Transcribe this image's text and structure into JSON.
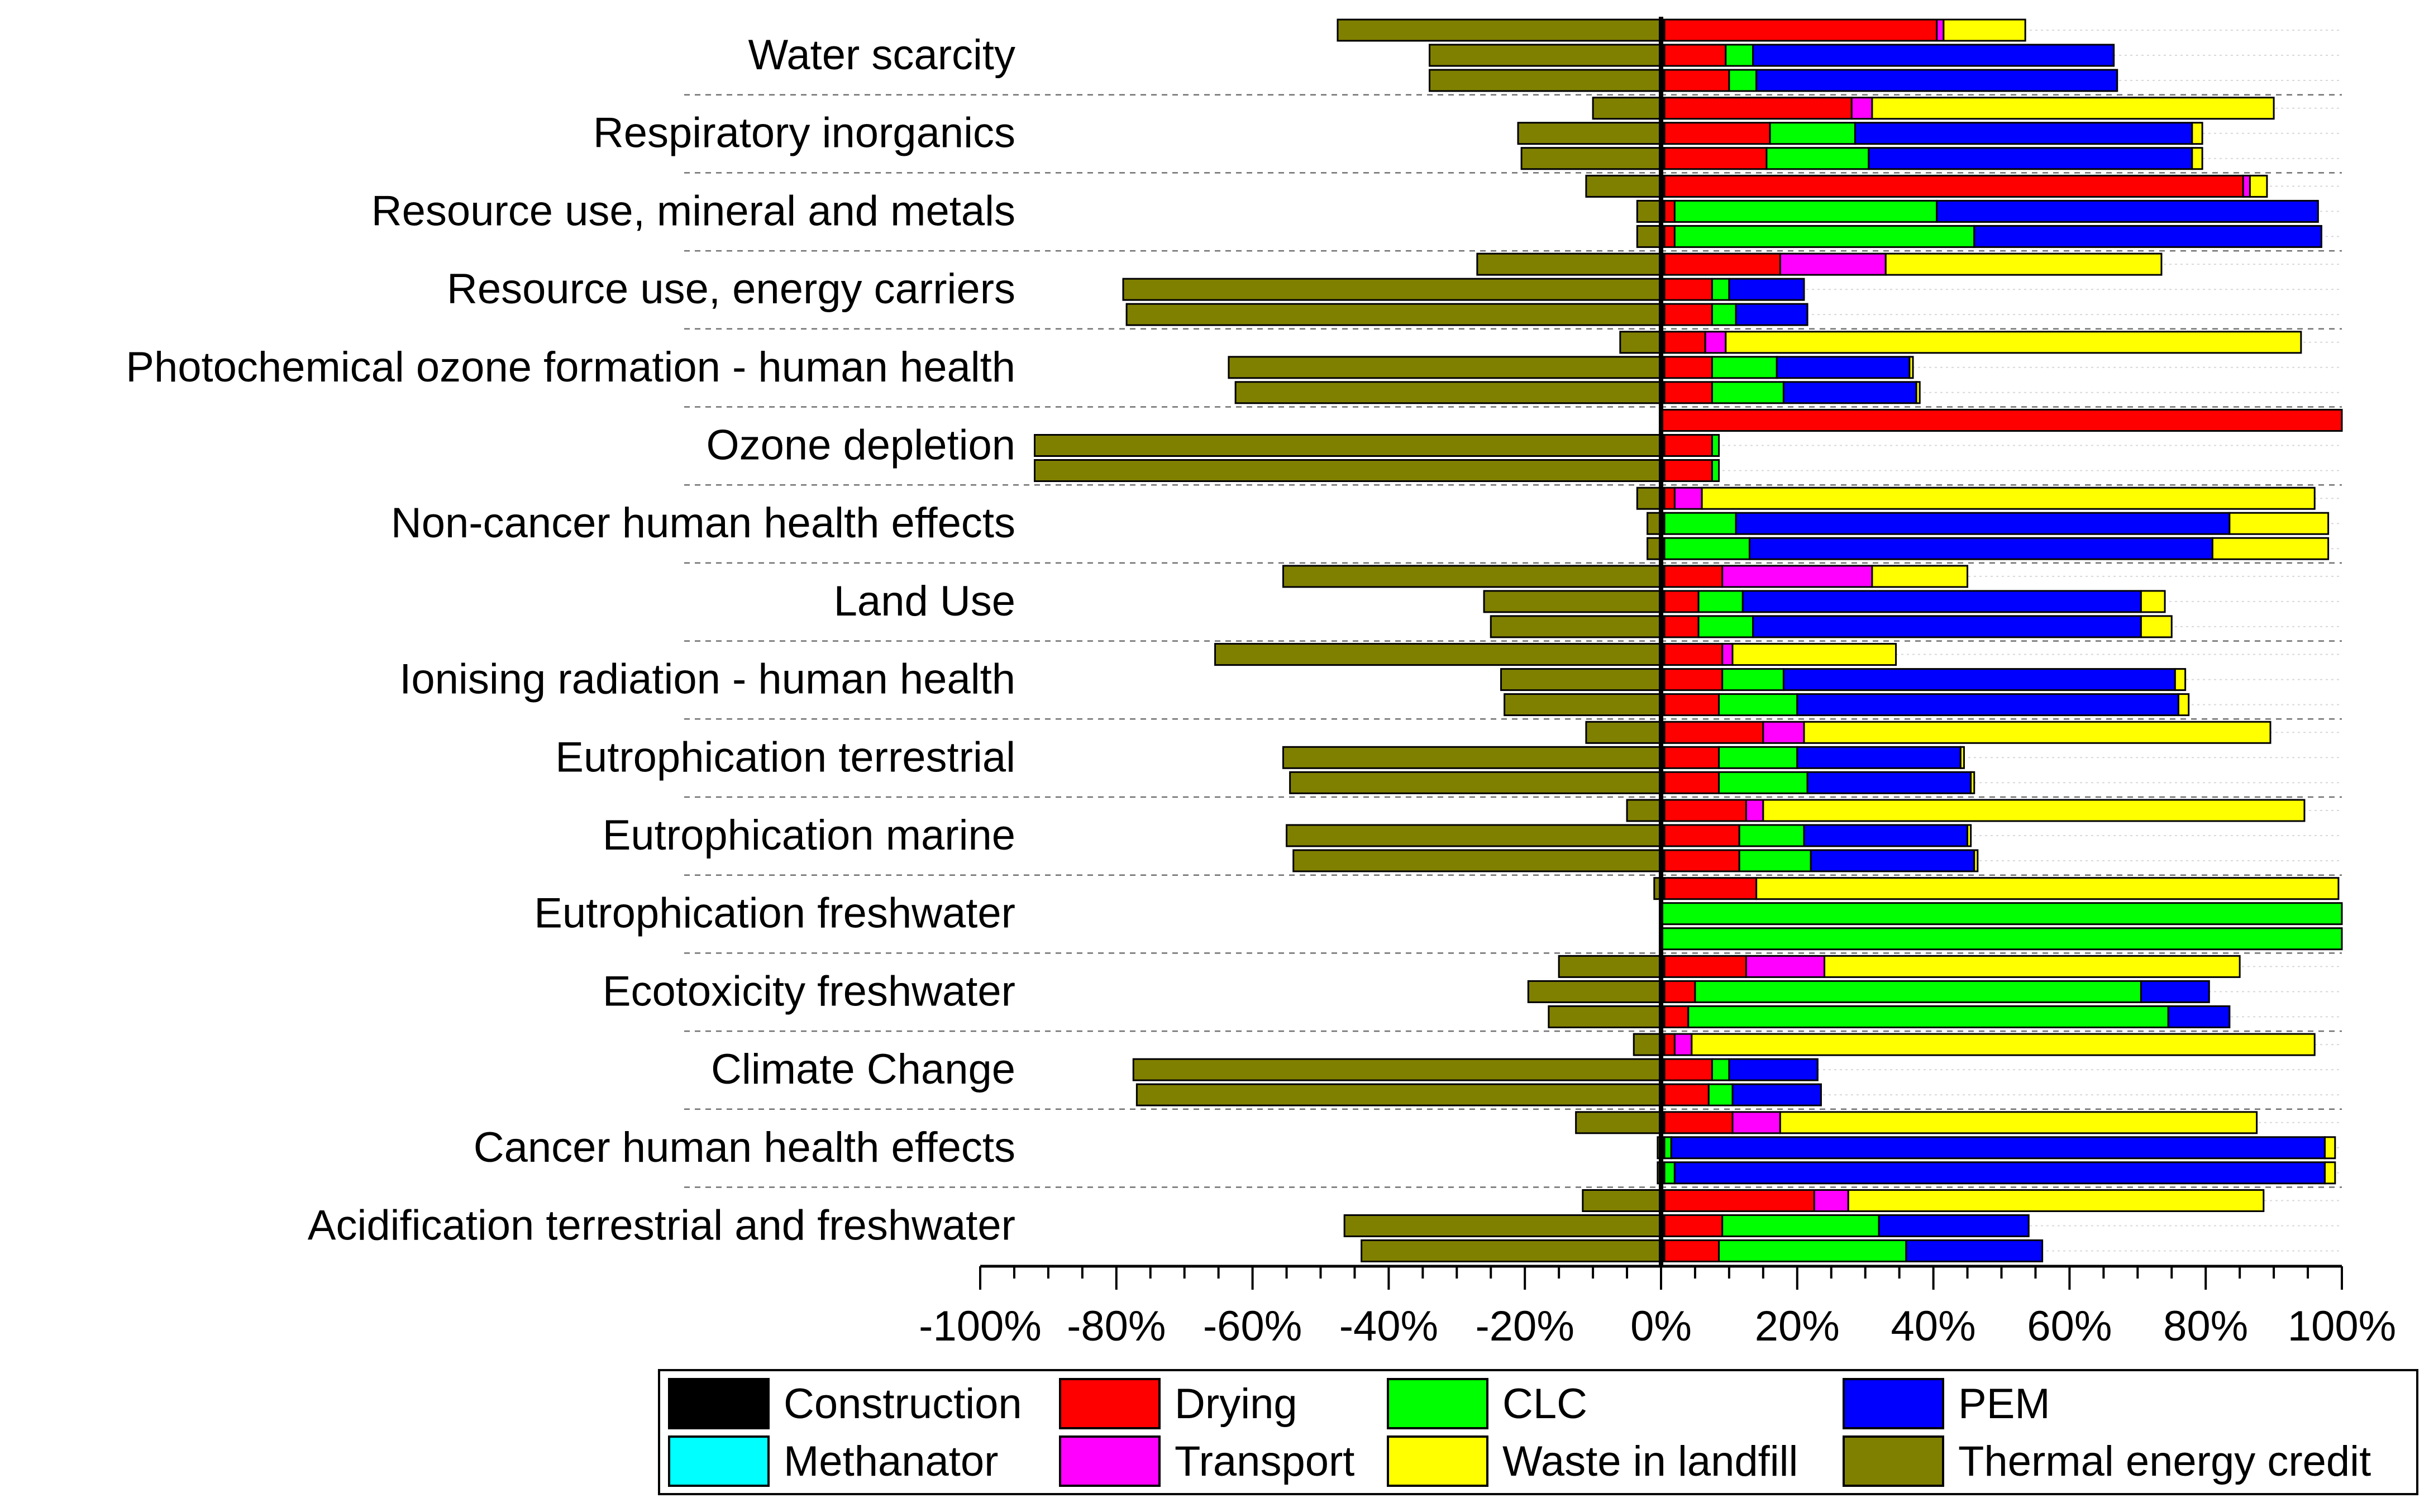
{
  "chart_data": {
    "type": "stacked-bar-horizontal",
    "title": "",
    "xlabel": "",
    "ylabel": "",
    "xlim": [
      -100,
      100
    ],
    "x_ticks": [
      "-100%",
      "-80%",
      "-60%",
      "-40%",
      "-20%",
      "0%",
      "20%",
      "40%",
      "60%",
      "80%",
      "100%"
    ],
    "value_unit": "%",
    "segment_order": [
      "Construction",
      "Drying",
      "Transport",
      "CLC",
      "PEM",
      "Methanator",
      "Waste in landfill"
    ],
    "legend": [
      {
        "name": "Construction",
        "color": "#000000"
      },
      {
        "name": "Drying",
        "color": "#ff0000"
      },
      {
        "name": "CLC",
        "color": "#00ff00"
      },
      {
        "name": "PEM",
        "color": "#0000ff"
      },
      {
        "name": "Methanator",
        "color": "#00ffff"
      },
      {
        "name": "Transport",
        "color": "#ff00ff"
      },
      {
        "name": "Waste in landfill",
        "color": "#ffff00"
      },
      {
        "name": "Thermal energy credit",
        "color": "#808000"
      }
    ],
    "categories": [
      {
        "label": "Water scarcity",
        "bars": [
          {
            "credit": -47.5,
            "segments": {
              "Construction": 0.5,
              "Drying": 40,
              "Transport": 1,
              "Waste in landfill": 12
            }
          },
          {
            "credit": -34,
            "segments": {
              "Construction": 0.5,
              "Drying": 9,
              "CLC": 4,
              "PEM": 53
            }
          },
          {
            "credit": -34,
            "segments": {
              "Construction": 0.5,
              "Drying": 9.5,
              "CLC": 4,
              "PEM": 53
            }
          }
        ]
      },
      {
        "label": "Respiratory inorganics",
        "bars": [
          {
            "credit": -10,
            "segments": {
              "Construction": 0.5,
              "Drying": 27.5,
              "Transport": 3,
              "Waste in landfill": 59
            }
          },
          {
            "credit": -21,
            "segments": {
              "Construction": 0.5,
              "Drying": 15.5,
              "CLC": 12.5,
              "PEM": 49.5,
              "Waste in landfill": 1.5
            }
          },
          {
            "credit": -20.5,
            "segments": {
              "Construction": 0.5,
              "Drying": 15,
              "CLC": 15,
              "PEM": 47.5,
              "Waste in landfill": 1.5
            }
          }
        ]
      },
      {
        "label": "Resource use, mineral and metals",
        "bars": [
          {
            "credit": -11,
            "segments": {
              "Construction": 0.5,
              "Drying": 85,
              "Transport": 1,
              "Waste in landfill": 2.5
            }
          },
          {
            "credit": -3.5,
            "segments": {
              "Construction": 0.5,
              "Drying": 1.5,
              "CLC": 38.5,
              "PEM": 56
            }
          },
          {
            "credit": -3.5,
            "segments": {
              "Construction": 0.5,
              "Drying": 1.5,
              "CLC": 44,
              "PEM": 51
            }
          }
        ]
      },
      {
        "label": "Resource use, energy carriers",
        "bars": [
          {
            "credit": -27,
            "segments": {
              "Construction": 0.5,
              "Drying": 17,
              "Transport": 15.5,
              "Waste in landfill": 40.5
            }
          },
          {
            "credit": -79,
            "segments": {
              "Construction": 0.5,
              "Drying": 7,
              "CLC": 2.5,
              "PEM": 11
            }
          },
          {
            "credit": -78.5,
            "segments": {
              "Construction": 0.5,
              "Drying": 7,
              "CLC": 3.5,
              "PEM": 10.5
            }
          }
        ]
      },
      {
        "label": "Photochemical ozone formation - human health",
        "bars": [
          {
            "credit": -6,
            "segments": {
              "Construction": 0.5,
              "Drying": 6,
              "Transport": 3,
              "Waste in landfill": 84.5
            }
          },
          {
            "credit": -63.5,
            "segments": {
              "Construction": 0.5,
              "Drying": 7,
              "CLC": 9.5,
              "PEM": 19.5,
              "Waste in landfill": 0.5
            }
          },
          {
            "credit": -62.5,
            "segments": {
              "Construction": 0.5,
              "Drying": 7,
              "CLC": 10.5,
              "PEM": 19.5,
              "Waste in landfill": 0.5
            }
          }
        ]
      },
      {
        "label": "Ozone depletion",
        "bars": [
          {
            "credit": 0,
            "segments": {
              "Drying": 100
            }
          },
          {
            "credit": -92,
            "segments": {
              "Construction": 0.5,
              "Drying": 7,
              "CLC": 1
            }
          },
          {
            "credit": -92,
            "segments": {
              "Construction": 0.5,
              "Drying": 7,
              "CLC": 1
            }
          }
        ]
      },
      {
        "label": "Non-cancer human health effects",
        "bars": [
          {
            "credit": -3.5,
            "segments": {
              "Construction": 0.5,
              "Drying": 1.5,
              "Transport": 4,
              "Waste in landfill": 90
            }
          },
          {
            "credit": -2,
            "segments": {
              "Construction": 0.5,
              "CLC": 10.5,
              "PEM": 72.5,
              "Waste in landfill": 14.5
            }
          },
          {
            "credit": -2,
            "segments": {
              "Construction": 0.5,
              "CLC": 12.5,
              "PEM": 68,
              "Waste in landfill": 17
            }
          }
        ]
      },
      {
        "label": "Land Use",
        "bars": [
          {
            "credit": -55.5,
            "segments": {
              "Construction": 0.5,
              "Drying": 8.5,
              "Transport": 22,
              "Waste in landfill": 14
            }
          },
          {
            "credit": -26,
            "segments": {
              "Construction": 0.5,
              "Drying": 5,
              "CLC": 6.5,
              "PEM": 58.5,
              "Waste in landfill": 3.5
            }
          },
          {
            "credit": -25,
            "segments": {
              "Construction": 0.5,
              "Drying": 5,
              "CLC": 8,
              "PEM": 57,
              "Waste in landfill": 4.5
            }
          }
        ]
      },
      {
        "label": "Ionising radiation - human health",
        "bars": [
          {
            "credit": -65.5,
            "segments": {
              "Construction": 0.5,
              "Drying": 8.5,
              "Transport": 1.5,
              "Waste in landfill": 24
            }
          },
          {
            "credit": -23.5,
            "segments": {
              "Construction": 0.5,
              "Drying": 8.5,
              "CLC": 9,
              "PEM": 57.5,
              "Waste in landfill": 1.5
            }
          },
          {
            "credit": -23,
            "segments": {
              "Construction": 0.5,
              "Drying": 8,
              "CLC": 11.5,
              "PEM": 56,
              "Waste in landfill": 1.5
            }
          }
        ]
      },
      {
        "label": "Eutrophication terrestrial",
        "bars": [
          {
            "credit": -11,
            "segments": {
              "Construction": 0.5,
              "Drying": 14.5,
              "Transport": 6,
              "Waste in landfill": 68.5
            }
          },
          {
            "credit": -55.5,
            "segments": {
              "Construction": 0.5,
              "Drying": 8,
              "CLC": 11.5,
              "PEM": 24,
              "Waste in landfill": 0.5
            }
          },
          {
            "credit": -54.5,
            "segments": {
              "Construction": 0.5,
              "Drying": 8,
              "CLC": 13,
              "PEM": 24,
              "Waste in landfill": 0.5
            }
          }
        ]
      },
      {
        "label": "Eutrophication marine",
        "bars": [
          {
            "credit": -5,
            "segments": {
              "Construction": 0.5,
              "Drying": 12,
              "Transport": 2.5,
              "Waste in landfill": 79.5
            }
          },
          {
            "credit": -55,
            "segments": {
              "Construction": 0.5,
              "Drying": 11,
              "CLC": 9.5,
              "PEM": 24,
              "Waste in landfill": 0.5
            }
          },
          {
            "credit": -54,
            "segments": {
              "Construction": 0.5,
              "Drying": 11,
              "CLC": 10.5,
              "PEM": 24,
              "Waste in landfill": 0.5
            }
          }
        ]
      },
      {
        "label": "Eutrophication freshwater",
        "bars": [
          {
            "credit": -1,
            "segments": {
              "Construction": 0.5,
              "Drying": 13.5,
              "Waste in landfill": 85.5
            }
          },
          {
            "credit": 0,
            "segments": {
              "CLC": 100
            }
          },
          {
            "credit": 0,
            "segments": {
              "CLC": 100
            }
          }
        ]
      },
      {
        "label": "Ecotoxicity freshwater",
        "bars": [
          {
            "credit": -15,
            "segments": {
              "Construction": 0.5,
              "Drying": 12,
              "Transport": 11.5,
              "Waste in landfill": 61
            }
          },
          {
            "credit": -19.5,
            "segments": {
              "Construction": 0.5,
              "Drying": 4.5,
              "CLC": 65.5,
              "PEM": 10
            }
          },
          {
            "credit": -16.5,
            "segments": {
              "Construction": 0.5,
              "Drying": 3.5,
              "CLC": 70.5,
              "PEM": 9
            }
          }
        ]
      },
      {
        "label": "Climate Change",
        "bars": [
          {
            "credit": -4,
            "segments": {
              "Construction": 0.5,
              "Drying": 1.5,
              "Transport": 2.5,
              "Waste in landfill": 91.5
            }
          },
          {
            "credit": -77.5,
            "segments": {
              "Construction": 0.5,
              "Drying": 7,
              "CLC": 2.5,
              "PEM": 13
            }
          },
          {
            "credit": -77,
            "segments": {
              "Construction": 0.5,
              "Drying": 6.5,
              "CLC": 3.5,
              "PEM": 13
            }
          }
        ]
      },
      {
        "label": "Cancer human health effects",
        "bars": [
          {
            "credit": -12.5,
            "segments": {
              "Construction": 0.5,
              "Drying": 10,
              "Transport": 7,
              "Waste in landfill": 70
            }
          },
          {
            "credit": -0.5,
            "segments": {
              "Construction": 0.5,
              "CLC": 1,
              "PEM": 96,
              "Waste in landfill": 1.5
            }
          },
          {
            "credit": -0.5,
            "segments": {
              "Construction": 0.5,
              "CLC": 1.5,
              "PEM": 95.5,
              "Waste in landfill": 1.5
            }
          }
        ]
      },
      {
        "label": "Acidification terrestrial and freshwater",
        "bars": [
          {
            "credit": -11.5,
            "segments": {
              "Construction": 0.5,
              "Drying": 22,
              "Transport": 5,
              "Waste in landfill": 61
            }
          },
          {
            "credit": -46.5,
            "segments": {
              "Construction": 0.5,
              "Drying": 8.5,
              "CLC": 23,
              "PEM": 22
            }
          },
          {
            "credit": -44,
            "segments": {
              "Construction": 0.5,
              "Drying": 8,
              "CLC": 27.5,
              "PEM": 20
            }
          }
        ]
      }
    ]
  }
}
